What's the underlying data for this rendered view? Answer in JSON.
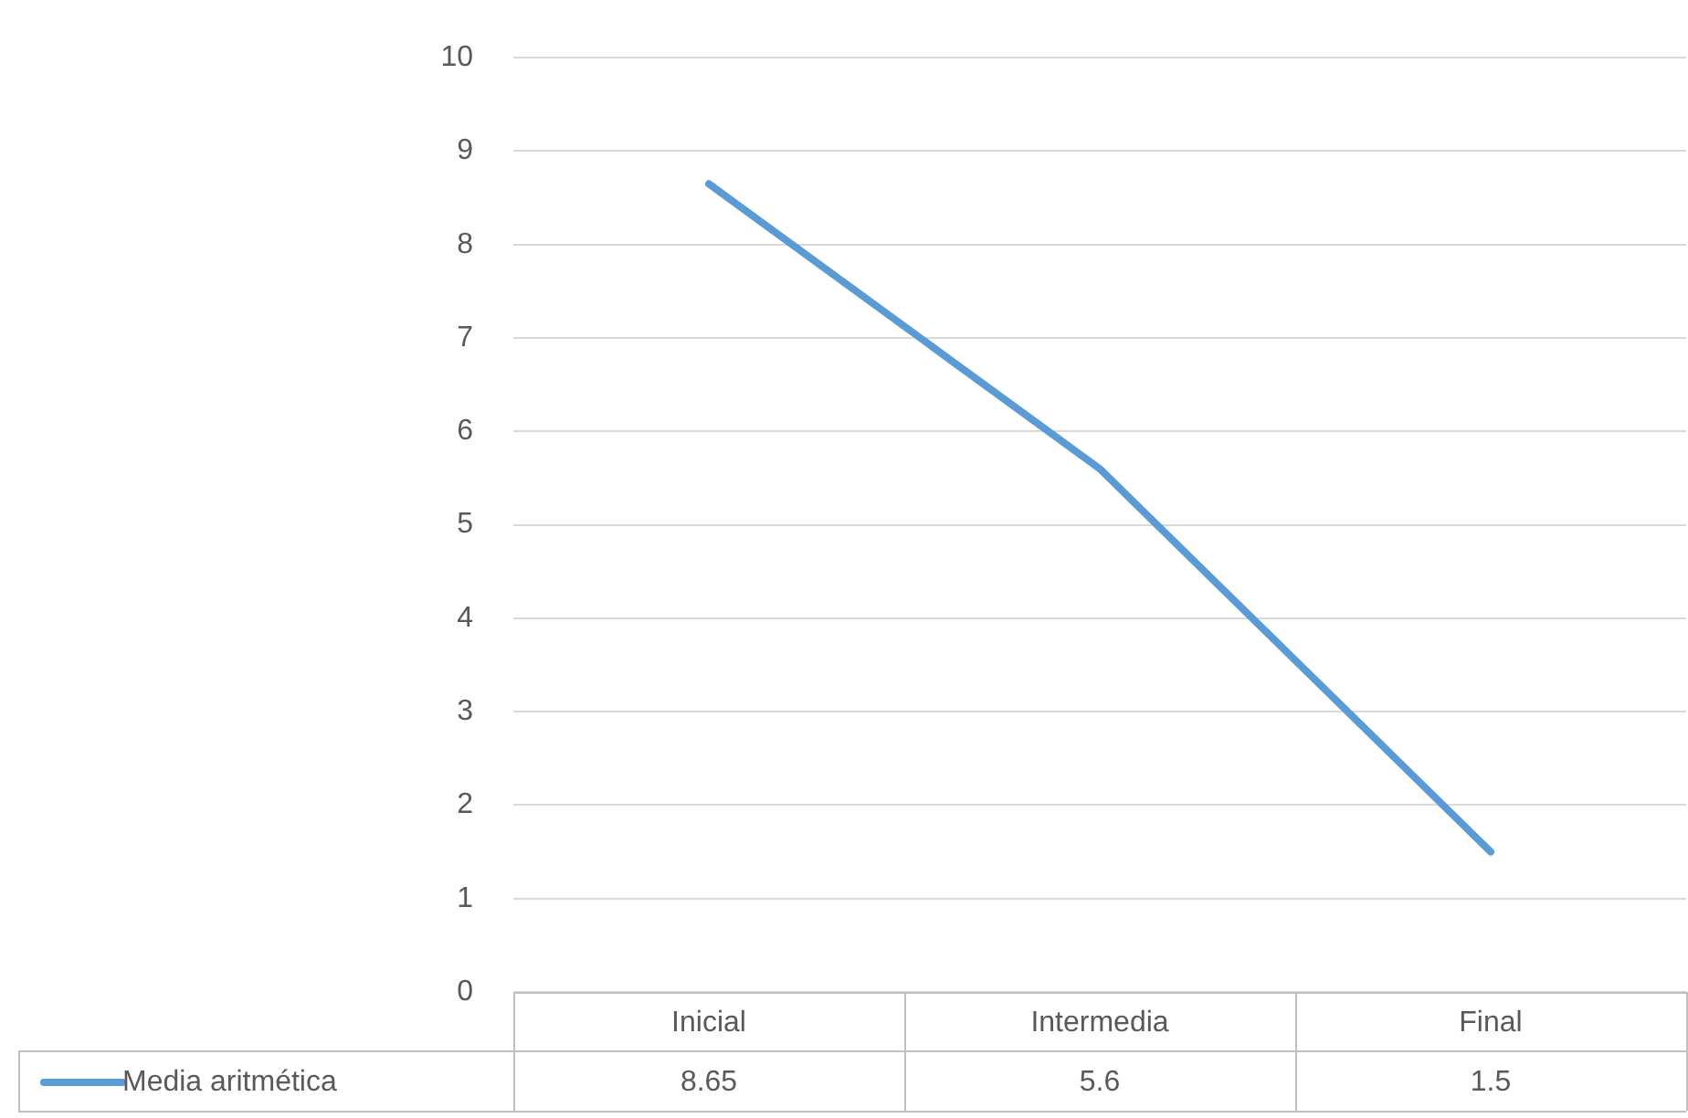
{
  "chart_data": {
    "type": "line",
    "categories": [
      "Inicial",
      "Intermedia",
      "Final"
    ],
    "series": [
      {
        "name": "Media aritmética",
        "color": "#5b9bd5",
        "values": [
          8.65,
          5.6,
          1.5
        ]
      }
    ],
    "ylim": [
      0,
      10
    ],
    "yticks": [
      0,
      1,
      2,
      3,
      4,
      5,
      6,
      7,
      8,
      9,
      10
    ],
    "grid": "y",
    "legend": "bottom left",
    "data_labels": true,
    "marker": "none",
    "line_style": "solid"
  }
}
